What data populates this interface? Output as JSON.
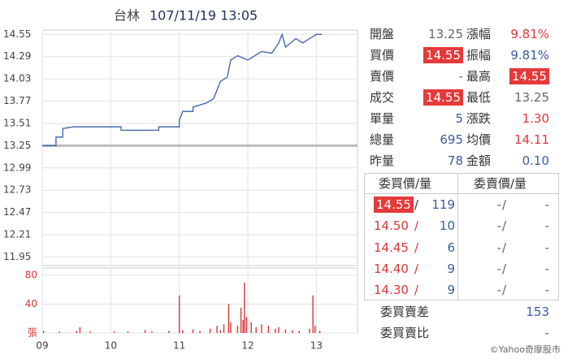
{
  "chart_data": [
    {
      "type": "line",
      "title": "台林",
      "subtitle": "107/11/19 13:05",
      "color": "#3a5fa8",
      "grid": true,
      "xlim": [
        9,
        13.6
      ],
      "xticks": [
        {
          "value": 9,
          "label": "09"
        },
        {
          "value": 10,
          "label": "10"
        },
        {
          "value": 11,
          "label": "11"
        },
        {
          "value": 12,
          "label": "12"
        },
        {
          "value": 13,
          "label": "13"
        }
      ],
      "ylim": [
        11.85,
        14.6
      ],
      "yticks": [
        14.55,
        14.29,
        14.03,
        13.77,
        13.51,
        13.25,
        12.99,
        12.73,
        12.47,
        12.21,
        11.95
      ],
      "reference_line": 13.25,
      "x": [
        9.0,
        9.2,
        9.2,
        9.3,
        9.3,
        9.45,
        10.15,
        10.15,
        10.7,
        10.7,
        11.0,
        11.0,
        11.05,
        11.2,
        11.2,
        11.4,
        11.5,
        11.55,
        11.6,
        11.7,
        11.75,
        11.85,
        12.0,
        12.2,
        12.35,
        12.45,
        12.5,
        12.55,
        12.7,
        12.8,
        12.9,
        13.0,
        13.08
      ],
      "values": [
        13.25,
        13.25,
        13.35,
        13.35,
        13.45,
        13.47,
        13.47,
        13.43,
        13.43,
        13.47,
        13.47,
        13.55,
        13.65,
        13.65,
        13.7,
        13.75,
        13.8,
        13.9,
        14.0,
        14.05,
        14.25,
        14.3,
        14.25,
        14.35,
        14.33,
        14.45,
        14.55,
        14.4,
        14.5,
        14.45,
        14.5,
        14.55,
        14.55
      ]
    },
    {
      "type": "bar",
      "color": "#d9353a",
      "grid": true,
      "xlim": [
        9,
        13.6
      ],
      "xticks": [
        {
          "value": 9,
          "label": "09"
        },
        {
          "value": 10,
          "label": "10"
        },
        {
          "value": 11,
          "label": "11"
        },
        {
          "value": 12,
          "label": "12"
        },
        {
          "value": 13,
          "label": "13"
        }
      ],
      "ylim": [
        0,
        90
      ],
      "yticks": [
        80,
        40,
        {
          "value": 0,
          "label": "張"
        }
      ],
      "x": [
        9.02,
        9.25,
        9.5,
        9.55,
        9.7,
        10.05,
        10.25,
        10.5,
        10.6,
        10.85,
        11.0,
        11.05,
        11.2,
        11.3,
        11.45,
        11.55,
        11.6,
        11.65,
        11.72,
        11.75,
        11.85,
        11.9,
        11.93,
        11.95,
        11.98,
        12.05,
        12.12,
        12.2,
        12.3,
        12.4,
        12.45,
        12.55,
        12.65,
        12.75,
        12.9,
        12.95,
        12.98,
        13.05
      ],
      "values": [
        3,
        2,
        3,
        8,
        2,
        2,
        2,
        4,
        2,
        3,
        52,
        4,
        5,
        3,
        6,
        10,
        4,
        12,
        40,
        15,
        10,
        35,
        18,
        70,
        22,
        15,
        8,
        12,
        10,
        6,
        8,
        5,
        4,
        3,
        6,
        52,
        10,
        3
      ]
    }
  ],
  "quote": {
    "rows": [
      [
        "開盤",
        "13.25",
        "漲幅",
        "9.81%"
      ],
      [
        "買價",
        "14.55",
        "振幅",
        "9.81%"
      ],
      [
        "賣價",
        "-",
        "最高",
        "14.55"
      ],
      [
        "成交",
        "14.55",
        "最低",
        "13.25"
      ],
      [
        "單量",
        "5",
        "漲跌",
        "1.30"
      ],
      [
        "總量",
        "695",
        "均價",
        "14.11"
      ],
      [
        "昨量",
        "78",
        "金額",
        "0.10"
      ]
    ],
    "order_book": {
      "header": [
        "委買價/量",
        "委賣價/量"
      ],
      "separator": "/",
      "rows": [
        [
          "14.55",
          "119",
          "-",
          "-"
        ],
        [
          "14.50",
          "10",
          "-",
          "-"
        ],
        [
          "14.45",
          "6",
          "-",
          "-"
        ],
        [
          "14.40",
          "9",
          "-",
          "-"
        ],
        [
          "14.30",
          "9",
          "-",
          "-"
        ]
      ]
    },
    "summary": [
      [
        "委買賣差",
        "153"
      ],
      [
        "委買賣比",
        "-"
      ]
    ]
  },
  "footer": "©Yahoo奇摩股市"
}
